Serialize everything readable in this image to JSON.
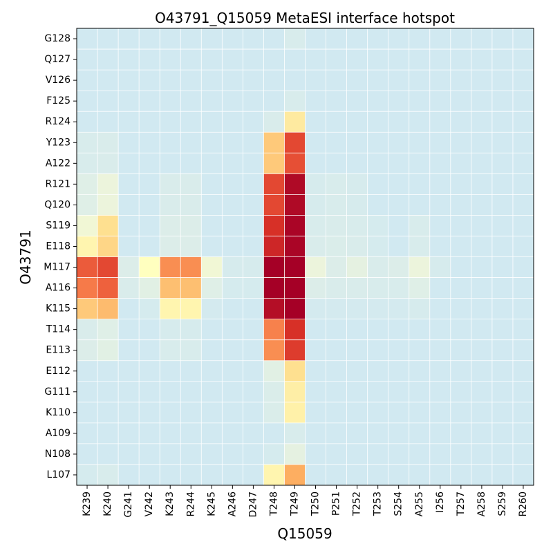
{
  "chart_data": {
    "type": "heatmap",
    "title": "O43791_Q15059 MetaESI interface hotspot",
    "xlabel": "Q15059",
    "ylabel": "O43791",
    "x_categories": [
      "K239",
      "K240",
      "G241",
      "V242",
      "K243",
      "R244",
      "K245",
      "A246",
      "D247",
      "T248",
      "T249",
      "T250",
      "P251",
      "T252",
      "T253",
      "S254",
      "A255",
      "I256",
      "T257",
      "A258",
      "S259",
      "R260"
    ],
    "y_categories": [
      "G128",
      "Q127",
      "V126",
      "F125",
      "R124",
      "Y123",
      "A122",
      "R121",
      "Q120",
      "S119",
      "E118",
      "M117",
      "A116",
      "K115",
      "T114",
      "E113",
      "E112",
      "G111",
      "K110",
      "A109",
      "N108",
      "L107"
    ],
    "value_range": [
      0,
      1
    ],
    "colormap": "RdYlBu_r",
    "grid": true,
    "values": [
      [
        0.0,
        0.0,
        0.0,
        0.0,
        0.0,
        0.0,
        0.0,
        0.0,
        0.0,
        0.0,
        0.05,
        0.0,
        0.0,
        0.0,
        0.0,
        0.0,
        0.0,
        0.0,
        0.0,
        0.0,
        0.0,
        0.0
      ],
      [
        0.0,
        0.0,
        0.0,
        0.0,
        0.0,
        0.0,
        0.0,
        0.0,
        0.0,
        0.0,
        0.0,
        0.0,
        0.0,
        0.0,
        0.0,
        0.0,
        0.0,
        0.0,
        0.0,
        0.0,
        0.0,
        0.0
      ],
      [
        0.0,
        0.0,
        0.0,
        0.0,
        0.0,
        0.0,
        0.0,
        0.0,
        0.0,
        0.0,
        0.0,
        0.0,
        0.0,
        0.0,
        0.0,
        0.0,
        0.0,
        0.0,
        0.0,
        0.0,
        0.0,
        0.0
      ],
      [
        0.0,
        0.0,
        0.0,
        0.0,
        0.0,
        0.0,
        0.0,
        0.0,
        0.0,
        0.0,
        0.05,
        0.0,
        0.0,
        0.0,
        0.0,
        0.0,
        0.0,
        0.0,
        0.0,
        0.0,
        0.0,
        0.0
      ],
      [
        0.0,
        0.0,
        0.0,
        0.0,
        0.0,
        0.0,
        0.0,
        0.0,
        0.0,
        0.06,
        0.5,
        0.0,
        0.0,
        0.0,
        0.0,
        0.0,
        0.0,
        0.0,
        0.0,
        0.0,
        0.0,
        0.0
      ],
      [
        0.05,
        0.06,
        0.0,
        0.0,
        0.0,
        0.0,
        0.0,
        0.0,
        0.0,
        0.62,
        0.86,
        0.0,
        0.0,
        0.0,
        0.0,
        0.0,
        0.0,
        0.0,
        0.0,
        0.0,
        0.0,
        0.0
      ],
      [
        0.05,
        0.06,
        0.0,
        0.0,
        0.0,
        0.0,
        0.0,
        0.0,
        0.0,
        0.62,
        0.85,
        0.0,
        0.0,
        0.0,
        0.0,
        0.0,
        0.0,
        0.0,
        0.0,
        0.0,
        0.0,
        0.0
      ],
      [
        0.1,
        0.2,
        0.0,
        0.0,
        0.06,
        0.06,
        0.0,
        0.0,
        0.0,
        0.86,
        0.98,
        0.04,
        0.05,
        0.04,
        0.0,
        0.0,
        0.0,
        0.0,
        0.0,
        0.0,
        0.0,
        0.0
      ],
      [
        0.1,
        0.2,
        0.0,
        0.0,
        0.06,
        0.06,
        0.0,
        0.0,
        0.0,
        0.86,
        0.98,
        0.04,
        0.05,
        0.04,
        0.0,
        0.0,
        0.0,
        0.0,
        0.0,
        0.0,
        0.0,
        0.0
      ],
      [
        0.25,
        0.55,
        0.0,
        0.0,
        0.08,
        0.08,
        0.0,
        0.0,
        0.0,
        0.9,
        0.99,
        0.05,
        0.06,
        0.05,
        0.03,
        0.0,
        0.05,
        0.0,
        0.0,
        0.0,
        0.0,
        0.0
      ],
      [
        0.45,
        0.58,
        0.0,
        0.0,
        0.08,
        0.08,
        0.0,
        0.0,
        0.0,
        0.92,
        0.99,
        0.06,
        0.07,
        0.06,
        0.03,
        0.0,
        0.05,
        0.0,
        0.0,
        0.0,
        0.0,
        0.0
      ],
      [
        0.83,
        0.86,
        0.08,
        0.4,
        0.75,
        0.75,
        0.25,
        0.04,
        0.04,
        1.0,
        1.0,
        0.2,
        0.08,
        0.15,
        0.06,
        0.08,
        0.2,
        0.04,
        0.0,
        0.0,
        0.0,
        0.0
      ],
      [
        0.78,
        0.82,
        0.06,
        0.12,
        0.65,
        0.65,
        0.1,
        0.03,
        0.03,
        1.0,
        1.0,
        0.08,
        0.06,
        0.06,
        0.05,
        0.05,
        0.1,
        0.0,
        0.0,
        0.0,
        0.0,
        0.0
      ],
      [
        0.62,
        0.66,
        0.0,
        0.03,
        0.45,
        0.45,
        0.02,
        0.0,
        0.0,
        0.97,
        1.0,
        0.02,
        0.02,
        0.02,
        0.02,
        0.02,
        0.04,
        0.0,
        0.0,
        0.0,
        0.0,
        0.0
      ],
      [
        0.06,
        0.1,
        0.0,
        0.0,
        0.04,
        0.04,
        0.0,
        0.0,
        0.0,
        0.77,
        0.9,
        0.0,
        0.0,
        0.0,
        0.0,
        0.0,
        0.0,
        0.0,
        0.0,
        0.0,
        0.0,
        0.0
      ],
      [
        0.08,
        0.12,
        0.0,
        0.0,
        0.05,
        0.05,
        0.0,
        0.0,
        0.0,
        0.75,
        0.88,
        0.0,
        0.0,
        0.0,
        0.0,
        0.0,
        0.0,
        0.0,
        0.0,
        0.0,
        0.0,
        0.0
      ],
      [
        0.0,
        0.0,
        0.0,
        0.0,
        0.0,
        0.0,
        0.0,
        0.0,
        0.0,
        0.12,
        0.55,
        0.0,
        0.0,
        0.0,
        0.0,
        0.0,
        0.0,
        0.0,
        0.0,
        0.0,
        0.0,
        0.0
      ],
      [
        0.0,
        0.0,
        0.0,
        0.0,
        0.0,
        0.0,
        0.0,
        0.0,
        0.0,
        0.07,
        0.48,
        0.0,
        0.0,
        0.0,
        0.0,
        0.0,
        0.0,
        0.0,
        0.0,
        0.0,
        0.0,
        0.0
      ],
      [
        0.0,
        0.0,
        0.0,
        0.0,
        0.0,
        0.0,
        0.0,
        0.0,
        0.0,
        0.07,
        0.47,
        0.0,
        0.0,
        0.0,
        0.0,
        0.0,
        0.0,
        0.0,
        0.0,
        0.0,
        0.0,
        0.0
      ],
      [
        0.0,
        0.0,
        0.0,
        0.0,
        0.0,
        0.0,
        0.0,
        0.0,
        0.0,
        0.0,
        0.05,
        0.0,
        0.0,
        0.0,
        0.0,
        0.0,
        0.0,
        0.0,
        0.0,
        0.0,
        0.0,
        0.0
      ],
      [
        0.0,
        0.0,
        0.0,
        0.0,
        0.0,
        0.0,
        0.0,
        0.0,
        0.0,
        0.03,
        0.15,
        0.0,
        0.0,
        0.0,
        0.0,
        0.0,
        0.0,
        0.0,
        0.0,
        0.0,
        0.0,
        0.0
      ],
      [
        0.03,
        0.05,
        0.0,
        0.0,
        0.0,
        0.0,
        0.0,
        0.0,
        0.0,
        0.45,
        0.7,
        0.0,
        0.0,
        0.0,
        0.0,
        0.0,
        0.0,
        0.0,
        0.0,
        0.0,
        0.0,
        0.0
      ]
    ]
  }
}
